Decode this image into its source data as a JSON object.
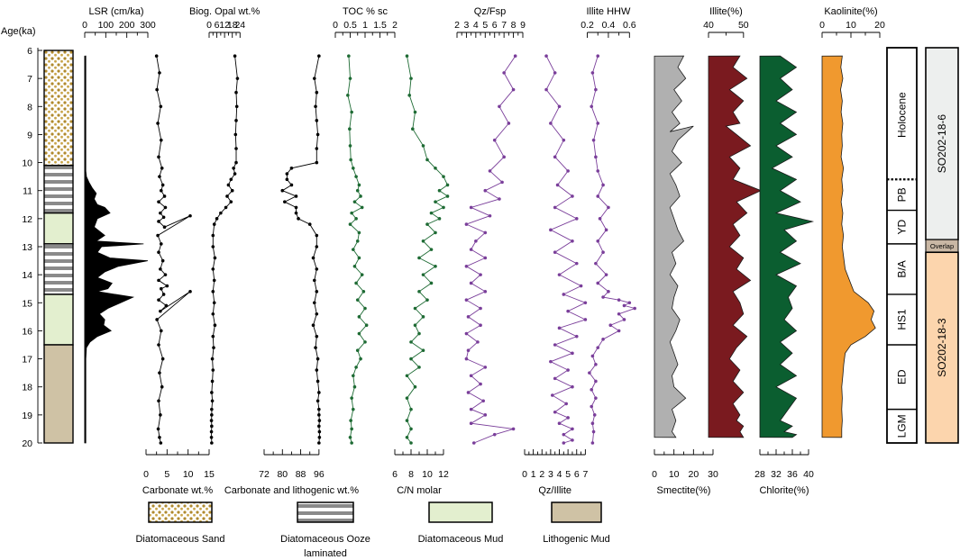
{
  "figure": {
    "y_axis_label": "Age(ka)",
    "y_ticks": [
      6,
      7,
      8,
      9,
      10,
      11,
      12,
      13,
      14,
      15,
      16,
      17,
      18,
      19,
      20
    ],
    "legend": [
      {
        "label": "Diatomaceous Sand",
        "pattern": "dots",
        "color": "#c8a24a"
      },
      {
        "label": "Diatomaceous Ooze",
        "label2": "laminated",
        "pattern": "stripes",
        "color": "#888888"
      },
      {
        "label": "Diatomaceous Mud",
        "pattern": "fill",
        "color": "#e3efcf"
      },
      {
        "label": "Lithogenic Mud",
        "pattern": "fill",
        "color": "#cfc2a5"
      }
    ],
    "periods": [
      "Holocene",
      "PB",
      "YD",
      "B/A",
      "HS1",
      "ED",
      "LGM"
    ],
    "cores": [
      "SO202-18-6",
      "Overlap",
      "SO202-18-3"
    ]
  },
  "chart_data": [
    {
      "type": "area",
      "name": "LSR",
      "title": "LSR (cm/ka)",
      "position": "top",
      "ticks": [
        0,
        100,
        200,
        300
      ],
      "xlim": [
        0,
        300
      ],
      "color": "#000000",
      "x": [
        5,
        5,
        5,
        5,
        5,
        8,
        20,
        35,
        55,
        45,
        60,
        95,
        120,
        60,
        45,
        95,
        55,
        280,
        80,
        60,
        120,
        300,
        160,
        95,
        60,
        130,
        110,
        60,
        230,
        110,
        70,
        95,
        90,
        125,
        60,
        25,
        8,
        5,
        5,
        5,
        5,
        5
      ],
      "y": [
        6.2,
        8,
        9.8,
        10.1,
        10.3,
        10.5,
        10.7,
        10.9,
        11.1,
        11.3,
        11.5,
        11.6,
        11.8,
        12,
        12.3,
        12.6,
        12.8,
        12.9,
        13,
        13.2,
        13.4,
        13.5,
        13.7,
        13.9,
        14.1,
        14.3,
        14.5,
        14.6,
        14.8,
        15.2,
        15.4,
        15.6,
        15.8,
        16,
        16.2,
        16.4,
        16.6,
        17,
        18,
        19,
        19.8,
        20
      ]
    },
    {
      "type": "line",
      "name": "Carbonate",
      "title": "Carbonate wt.%",
      "position": "bottom",
      "ticks": [
        0,
        5,
        10,
        15
      ],
      "xlim": [
        0,
        15
      ],
      "color": "#000000",
      "x": [
        2.5,
        3.2,
        2.6,
        3.5,
        2.8,
        3.6,
        3.0,
        3.8,
        3.2,
        4.0,
        3.6,
        4.4,
        3.0,
        4.6,
        3.4,
        4.2,
        3.0,
        4.4,
        10.5,
        2.8,
        3.6,
        3.0,
        4.0,
        3.4,
        4.6,
        3.0,
        5.0,
        3.6,
        4.2,
        3.0,
        4.8,
        3.4,
        10.5,
        2.6,
        3.6,
        3.0,
        4.0,
        3.2,
        3.8,
        3.0,
        3.4,
        2.9,
        3.2,
        3.5
      ],
      "y": [
        6.2,
        6.8,
        7.4,
        8.0,
        8.6,
        9.2,
        9.8,
        10.2,
        10.5,
        10.8,
        11.0,
        11.2,
        11.4,
        11.6,
        11.8,
        11.95,
        12.1,
        12.3,
        11.9,
        12.6,
        12.9,
        13.2,
        13.5,
        13.8,
        14.0,
        14.2,
        14.4,
        14.5,
        14.7,
        14.9,
        15.1,
        15.3,
        14.6,
        15.6,
        16.0,
        16.5,
        17.0,
        17.5,
        18.0,
        18.5,
        19.0,
        19.5,
        19.8,
        20.0
      ]
    },
    {
      "type": "line",
      "name": "Biogenic Opal",
      "title": "Biog. Opal wt.%",
      "position": "top",
      "ticks": [
        0,
        6,
        12,
        18,
        24
      ],
      "xlim": [
        0,
        28
      ],
      "color": "#000000",
      "x": [
        20,
        22,
        21,
        21.5,
        21,
        20.5,
        21,
        21,
        19,
        20,
        17,
        15,
        18,
        14,
        17,
        13,
        9,
        6,
        4,
        3,
        3,
        4.5,
        3,
        4,
        3,
        4,
        3,
        4.5,
        3,
        3.5,
        2.5,
        3,
        2.5,
        2,
        2.5,
        2,
        2,
        1.8,
        2,
        1.8,
        1.8,
        2
      ],
      "y": [
        6.2,
        7,
        7.5,
        8,
        8.5,
        9,
        9.5,
        10,
        10.2,
        10.4,
        10.6,
        10.8,
        11,
        11.2,
        11.4,
        11.6,
        11.8,
        12,
        12.2,
        12.6,
        13,
        13.4,
        13.8,
        14.2,
        14.6,
        15,
        15.4,
        15.8,
        16.2,
        16.6,
        17,
        17.4,
        17.8,
        18.2,
        18.5,
        18.8,
        19,
        19.2,
        19.4,
        19.6,
        19.8,
        20
      ]
    },
    {
      "type": "line",
      "name": "Carbonate and lithogenic",
      "title": "Carbonate and lithogenic wt.%",
      "position": "bottom",
      "ticks": [
        72,
        80,
        88,
        96
      ],
      "xlim": [
        72,
        100
      ],
      "color": "#000000",
      "x": [
        96,
        94,
        95,
        94.5,
        95,
        95.5,
        95,
        95,
        84,
        82,
        82,
        84,
        80,
        86,
        81,
        86,
        86,
        87,
        92,
        95,
        95,
        93.5,
        95,
        94,
        95,
        94,
        95,
        93.5,
        95,
        94.5,
        95.5,
        95,
        95.5,
        96,
        95.5,
        96,
        96,
        96.2,
        96,
        96.2,
        96.2,
        96
      ],
      "y": [
        6.2,
        7,
        7.5,
        8,
        8.5,
        9,
        9.5,
        10,
        10.2,
        10.4,
        10.6,
        10.8,
        11,
        11.2,
        11.4,
        11.6,
        11.8,
        12,
        12.2,
        12.6,
        13,
        13.4,
        13.8,
        14.2,
        14.6,
        15,
        15.4,
        15.8,
        16.2,
        16.6,
        17,
        17.4,
        17.8,
        18.2,
        18.5,
        18.8,
        19,
        19.2,
        19.4,
        19.6,
        19.8,
        20
      ]
    },
    {
      "type": "line",
      "name": "TOC",
      "title": "TOC % sc",
      "position": "top",
      "ticks": [
        0,
        0.5,
        1,
        1.5,
        2
      ],
      "xlim": [
        0,
        2
      ],
      "color": "#1e6b34",
      "x": [
        0.45,
        0.5,
        0.42,
        0.55,
        0.48,
        0.5,
        0.52,
        0.6,
        0.7,
        0.8,
        0.75,
        0.85,
        0.65,
        0.9,
        0.55,
        0.7,
        0.5,
        0.8,
        0.75,
        0.6,
        0.8,
        0.65,
        0.9,
        0.7,
        0.95,
        0.75,
        1.0,
        0.8,
        1.05,
        0.8,
        1.0,
        0.75,
        0.85,
        0.7,
        0.6,
        0.65,
        0.55,
        0.6,
        0.52,
        0.55,
        0.5,
        0.55
      ],
      "y": [
        6.2,
        7,
        7.6,
        8.2,
        8.8,
        9.4,
        9.9,
        10.2,
        10.5,
        10.8,
        11.0,
        11.2,
        11.4,
        11.6,
        11.8,
        12.0,
        12.2,
        12.5,
        12.8,
        13.1,
        13.4,
        13.7,
        14.0,
        14.3,
        14.6,
        14.9,
        15.2,
        15.5,
        15.8,
        16.1,
        16.4,
        16.7,
        17.0,
        17.3,
        17.6,
        18.0,
        18.4,
        18.8,
        19.2,
        19.5,
        19.8,
        20.0
      ]
    },
    {
      "type": "line",
      "name": "C/N",
      "title": "C/N molar",
      "position": "bottom",
      "ticks": [
        6,
        8,
        10,
        12
      ],
      "xlim": [
        6,
        14
      ],
      "color": "#1e6b34",
      "x": [
        7.5,
        8,
        7.8,
        8.5,
        8.2,
        9.5,
        10,
        11,
        12,
        12.5,
        11.5,
        12.5,
        11,
        12,
        10.5,
        11.5,
        10,
        11,
        9.5,
        10.5,
        9,
        11,
        9.5,
        10.5,
        9,
        10,
        8.5,
        9.5,
        8.5,
        9,
        8,
        9.5,
        8,
        9,
        7.5,
        8.5,
        7.5,
        8,
        7.5,
        8,
        7.5,
        8
      ],
      "y": [
        6.2,
        7,
        7.6,
        8.2,
        8.8,
        9.4,
        9.9,
        10.2,
        10.5,
        10.8,
        11.0,
        11.2,
        11.4,
        11.6,
        11.8,
        12.0,
        12.2,
        12.5,
        12.8,
        13.1,
        13.4,
        13.7,
        14.0,
        14.3,
        14.6,
        14.9,
        15.2,
        15.5,
        15.8,
        16.1,
        16.4,
        16.7,
        17.0,
        17.3,
        17.6,
        18.0,
        18.4,
        18.8,
        19.2,
        19.5,
        19.8,
        20.0
      ]
    },
    {
      "type": "line",
      "name": "Qz/Fsp",
      "title": "Qz/Fsp",
      "position": "top",
      "ticks": [
        2,
        3,
        4,
        5,
        6,
        7,
        8,
        9
      ],
      "xlim": [
        2,
        9
      ],
      "color": "#7a3e9a",
      "x": [
        8.2,
        7,
        8,
        6.5,
        7.5,
        6,
        7,
        5.5,
        6.8,
        5,
        6.5,
        3.5,
        5.5,
        3,
        5,
        4,
        3.5,
        5,
        3,
        4.5,
        3.5,
        5,
        3,
        4.5,
        3.2,
        4.5,
        3,
        4.2,
        3.2,
        3,
        5,
        3.5,
        4.5,
        3.2,
        4.8,
        3.5,
        5,
        3.5,
        8,
        6,
        3.8
      ],
      "y": [
        6.2,
        6.8,
        7.4,
        8.0,
        8.6,
        9.2,
        9.8,
        10.3,
        10.7,
        11.0,
        11.3,
        11.6,
        11.9,
        12.2,
        12.5,
        12.8,
        13.1,
        13.4,
        13.7,
        14.0,
        14.3,
        14.6,
        14.9,
        15.2,
        15.5,
        15.8,
        16.1,
        16.4,
        16.7,
        17.0,
        17.3,
        17.6,
        17.9,
        18.2,
        18.5,
        18.8,
        19.0,
        19.3,
        19.5,
        19.7,
        20.0
      ]
    },
    {
      "type": "line",
      "name": "Qz/Illite",
      "title": "Qz/Illite",
      "position": "bottom",
      "ticks": [
        0,
        1,
        2,
        3,
        4,
        5,
        6,
        7
      ],
      "xlim": [
        0,
        8
      ],
      "color": "#7a3e9a",
      "x": [
        2.5,
        3.5,
        2.5,
        4,
        3,
        4.5,
        3.5,
        5,
        3.8,
        5.5,
        3.5,
        6,
        3,
        5.5,
        3.5,
        6,
        4,
        6.5,
        4.5,
        7,
        5,
        7,
        4,
        6,
        3.5,
        5.5,
        3,
        5,
        3.5,
        5.5,
        3.2,
        4.8,
        3.5,
        5,
        4,
        5.5,
        4.5,
        5.5,
        4.5
      ],
      "y": [
        6.2,
        6.8,
        7.4,
        8.0,
        8.6,
        9.2,
        9.8,
        10.3,
        10.8,
        11.2,
        11.6,
        12.0,
        12.4,
        12.8,
        13.2,
        13.6,
        14.0,
        14.4,
        14.7,
        15.0,
        15.3,
        15.6,
        15.9,
        16.2,
        16.5,
        16.8,
        17.1,
        17.4,
        17.7,
        18.0,
        18.3,
        18.6,
        18.9,
        19.1,
        19.3,
        19.5,
        19.7,
        19.9,
        20.0
      ]
    },
    {
      "type": "line",
      "name": "Illite HHW",
      "title": "Illite HHW",
      "position": "top",
      "ticks": [
        0.2,
        0.4,
        0.6
      ],
      "xlim": [
        0.05,
        0.7
      ],
      "color": "#7a3e9a",
      "x": [
        0.3,
        0.25,
        0.28,
        0.24,
        0.3,
        0.26,
        0.28,
        0.3,
        0.35,
        0.3,
        0.4,
        0.32,
        0.38,
        0.3,
        0.35,
        0.28,
        0.38,
        0.3,
        0.4,
        0.35,
        0.5,
        0.6,
        0.55,
        0.65,
        0.5,
        0.55,
        0.42,
        0.5,
        0.35,
        0.3,
        0.25,
        0.28,
        0.22,
        0.28,
        0.24,
        0.28,
        0.24,
        0.27,
        0.25,
        0.26,
        0.25
      ],
      "y": [
        6.2,
        6.8,
        7.4,
        8.0,
        8.6,
        9.2,
        9.8,
        10.3,
        10.8,
        11.2,
        11.6,
        12.0,
        12.4,
        12.8,
        13.2,
        13.6,
        14.0,
        14.3,
        14.6,
        14.8,
        14.9,
        15.0,
        15.1,
        15.2,
        15.4,
        15.6,
        15.8,
        16.0,
        16.3,
        16.6,
        16.9,
        17.2,
        17.5,
        17.8,
        18.1,
        18.4,
        18.7,
        19.0,
        19.3,
        19.6,
        20.0
      ]
    },
    {
      "type": "area",
      "name": "Smectite",
      "title": "Smectite(%)",
      "position": "bottom",
      "ticks": [
        0,
        10,
        20,
        30
      ],
      "xlim": [
        0,
        30
      ],
      "color": "#b0b0b0",
      "x": [
        15,
        12,
        16,
        10,
        14,
        9,
        13,
        8,
        20,
        12,
        9,
        14,
        8,
        11,
        13,
        8,
        10,
        12,
        15,
        9,
        11,
        8,
        12,
        10,
        9,
        13,
        11,
        8,
        10,
        12,
        9,
        10,
        16,
        9,
        11,
        10,
        9,
        11
      ],
      "y": [
        6.2,
        6.6,
        7.0,
        7.4,
        7.8,
        8.2,
        8.6,
        8.9,
        8.7,
        9.2,
        9.6,
        10.0,
        10.4,
        10.8,
        11.2,
        11.6,
        12.0,
        12.4,
        12.8,
        13.2,
        13.6,
        14.0,
        14.4,
        14.8,
        15.2,
        15.6,
        16.0,
        16.4,
        16.8,
        17.2,
        17.6,
        18.0,
        18.4,
        18.8,
        19.2,
        19.4,
        19.6,
        19.8
      ]
    },
    {
      "type": "area",
      "name": "Illite",
      "title": "Illite(%)",
      "position": "top",
      "ticks": [
        40,
        50
      ],
      "xlim": [
        40,
        57
      ],
      "color": "#7a1a1f",
      "x": [
        49,
        47,
        51,
        46,
        50,
        47,
        49,
        45,
        48,
        52,
        46,
        49,
        47,
        55,
        48,
        51,
        47,
        49,
        46,
        50,
        48,
        52,
        47,
        49,
        50,
        47,
        51,
        48,
        46,
        49,
        47,
        50,
        47,
        49,
        48,
        50,
        49,
        50
      ],
      "y": [
        6.2,
        6.6,
        7.0,
        7.4,
        7.8,
        8.2,
        8.6,
        8.7,
        9.0,
        9.4,
        9.8,
        10.2,
        10.6,
        11.0,
        11.4,
        11.8,
        12.2,
        12.6,
        13.0,
        13.4,
        13.8,
        14.2,
        14.6,
        15.0,
        15.4,
        15.8,
        16.2,
        16.6,
        17.0,
        17.4,
        17.8,
        18.2,
        18.6,
        19.0,
        19.2,
        19.4,
        19.6,
        19.8
      ]
    },
    {
      "type": "area",
      "name": "Chlorite",
      "title": "Chlorite(%)",
      "position": "bottom",
      "ticks": [
        28,
        32,
        36,
        40
      ],
      "xlim": [
        28,
        42
      ],
      "color": "#0b5e30",
      "x": [
        33,
        37,
        33,
        36,
        32,
        37,
        33,
        37,
        32,
        36,
        31,
        37,
        33,
        38,
        32,
        41,
        34,
        37,
        33,
        38,
        32,
        37,
        35,
        36,
        34,
        37,
        33,
        36,
        33,
        37,
        32,
        37,
        35,
        33,
        36,
        34,
        37,
        36
      ],
      "y": [
        6.2,
        6.6,
        7.0,
        7.4,
        7.8,
        8.2,
        8.6,
        9.0,
        9.4,
        9.8,
        10.2,
        10.6,
        11.0,
        11.4,
        11.8,
        12.1,
        12.4,
        12.8,
        13.2,
        13.6,
        14.0,
        14.4,
        14.8,
        15.2,
        15.6,
        16.0,
        16.4,
        16.8,
        17.2,
        17.6,
        18.0,
        18.4,
        18.8,
        19.2,
        19.4,
        19.6,
        19.7,
        19.8
      ]
    },
    {
      "type": "area",
      "name": "Kaolinite",
      "title": "Kaolinite(%)",
      "position": "top",
      "ticks": [
        0,
        10,
        20
      ],
      "xlim": [
        0,
        20
      ],
      "color": "#f0992f",
      "x": [
        7,
        6.5,
        7.2,
        6.4,
        7,
        6.6,
        7.2,
        6.8,
        7,
        6.6,
        7.4,
        6.8,
        7.2,
        6.6,
        7.2,
        6.8,
        7.4,
        7,
        8,
        11,
        16,
        18,
        17,
        18.5,
        15,
        10,
        8,
        7.5,
        7.2,
        6.8,
        7,
        6.8,
        7,
        6.8,
        6.8
      ],
      "y": [
        6.2,
        6.6,
        7.0,
        7.4,
        7.8,
        8.2,
        8.6,
        9.0,
        9.4,
        9.8,
        10.2,
        10.6,
        11.0,
        11.4,
        11.8,
        12.2,
        12.6,
        13.0,
        13.8,
        14.6,
        15.0,
        15.3,
        15.6,
        15.9,
        16.2,
        16.5,
        16.8,
        17.2,
        17.6,
        18.0,
        18.4,
        18.8,
        19.2,
        19.5,
        19.8
      ]
    }
  ]
}
